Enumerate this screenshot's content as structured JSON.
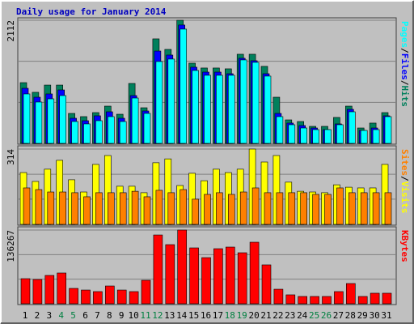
{
  "chart_data": {
    "type": "bar",
    "title": "Daily usage for January 2014",
    "categories": [
      "1",
      "2",
      "3",
      "4",
      "5",
      "6",
      "7",
      "8",
      "9",
      "10",
      "11",
      "12",
      "13",
      "14",
      "15",
      "16",
      "17",
      "18",
      "19",
      "20",
      "21",
      "22",
      "23",
      "24",
      "25",
      "26",
      "27",
      "28",
      "29",
      "30",
      "31"
    ],
    "category_colors": [
      "#000000",
      "#000000",
      "#000000",
      "#008040",
      "#008040",
      "#000000",
      "#000000",
      "#000000",
      "#000000",
      "#000000",
      "#008040",
      "#008040",
      "#000000",
      "#000000",
      "#000000",
      "#000000",
      "#000000",
      "#008040",
      "#008040",
      "#000000",
      "#000000",
      "#000000",
      "#000000",
      "#000000",
      "#008040",
      "#008040",
      "#000000",
      "#000000",
      "#000000",
      "#000000",
      "#000000"
    ],
    "separator": "/",
    "panels": [
      {
        "ylim": [
          0,
          2112
        ],
        "yticks": [
          2112
        ],
        "gridlines": [
          704,
          1408
        ],
        "series": [
          {
            "name": "Hits",
            "color": "#00805c",
            "values": [
              1042,
              876,
              1000,
              1000,
              514,
              459,
              528,
              639,
              500,
              1028,
              611,
              1793,
              1612,
              2112,
              1376,
              1293,
              1293,
              1279,
              1529,
              1529,
              1321,
              792,
              403,
              375,
              292,
              292,
              445,
              639,
              264,
              348,
              528
            ]
          },
          {
            "name": "Files",
            "color": "#0000ff",
            "values": [
              945,
              792,
              848,
              917,
              431,
              389,
              473,
              542,
              431,
              820,
              556,
              1584,
              1515,
              2030,
              1307,
              1223,
              1223,
              1195,
              1460,
              1418,
              1195,
              514,
              348,
              306,
              264,
              236,
              334,
              584,
              222,
              264,
              473
            ]
          },
          {
            "name": "Pages",
            "color": "#00ffff",
            "values": [
              848,
              709,
              764,
              820,
              375,
              334,
              389,
              459,
              375,
              778,
              514,
              1404,
              1446,
              1960,
              1251,
              1168,
              1168,
              1168,
              1432,
              1390,
              1154,
              459,
              320,
              264,
              236,
              236,
              320,
              542,
              222,
              236,
              459
            ]
          }
        ]
      },
      {
        "ylim": [
          0,
          314
        ],
        "yticks": [
          314
        ],
        "gridlines": [
          105,
          209
        ],
        "series": [
          {
            "name": "Visits",
            "color": "#ffff00",
            "values": [
              216,
              179,
              230,
              267,
              186,
              135,
              250,
              287,
              159,
              159,
              132,
              257,
              273,
              162,
              213,
              182,
              230,
              216,
              230,
              314,
              260,
              287,
              176,
              138,
              135,
              132,
              165,
              155,
              152,
              152,
              250
            ]
          },
          {
            "name": "Sites",
            "color": "#ff8000",
            "values": [
              152,
              145,
              135,
              135,
              132,
              115,
              132,
              132,
              132,
              138,
              115,
              142,
              132,
              145,
              105,
              125,
              132,
              125,
              135,
              152,
              132,
              132,
              132,
              132,
              125,
              125,
              152,
              132,
              132,
              132,
              132
            ]
          }
        ]
      },
      {
        "ylim": [
          0,
          136267
        ],
        "yticks": [
          136267
        ],
        "gridlines": [
          45400,
          90800
        ],
        "series": [
          {
            "name": "KBytes",
            "color": "#ff0000",
            "values": [
              46400,
              44900,
              52400,
              56900,
              28400,
              25400,
              22500,
              32900,
              25400,
              22500,
              43400,
              127200,
              109300,
              136267,
              103300,
              85300,
              101800,
              104800,
              94300,
              113800,
              71900,
              26900,
              16500,
              13500,
              13500,
              13500,
              22500,
              37400,
              13500,
              19500,
              19500
            ]
          }
        ]
      }
    ]
  }
}
